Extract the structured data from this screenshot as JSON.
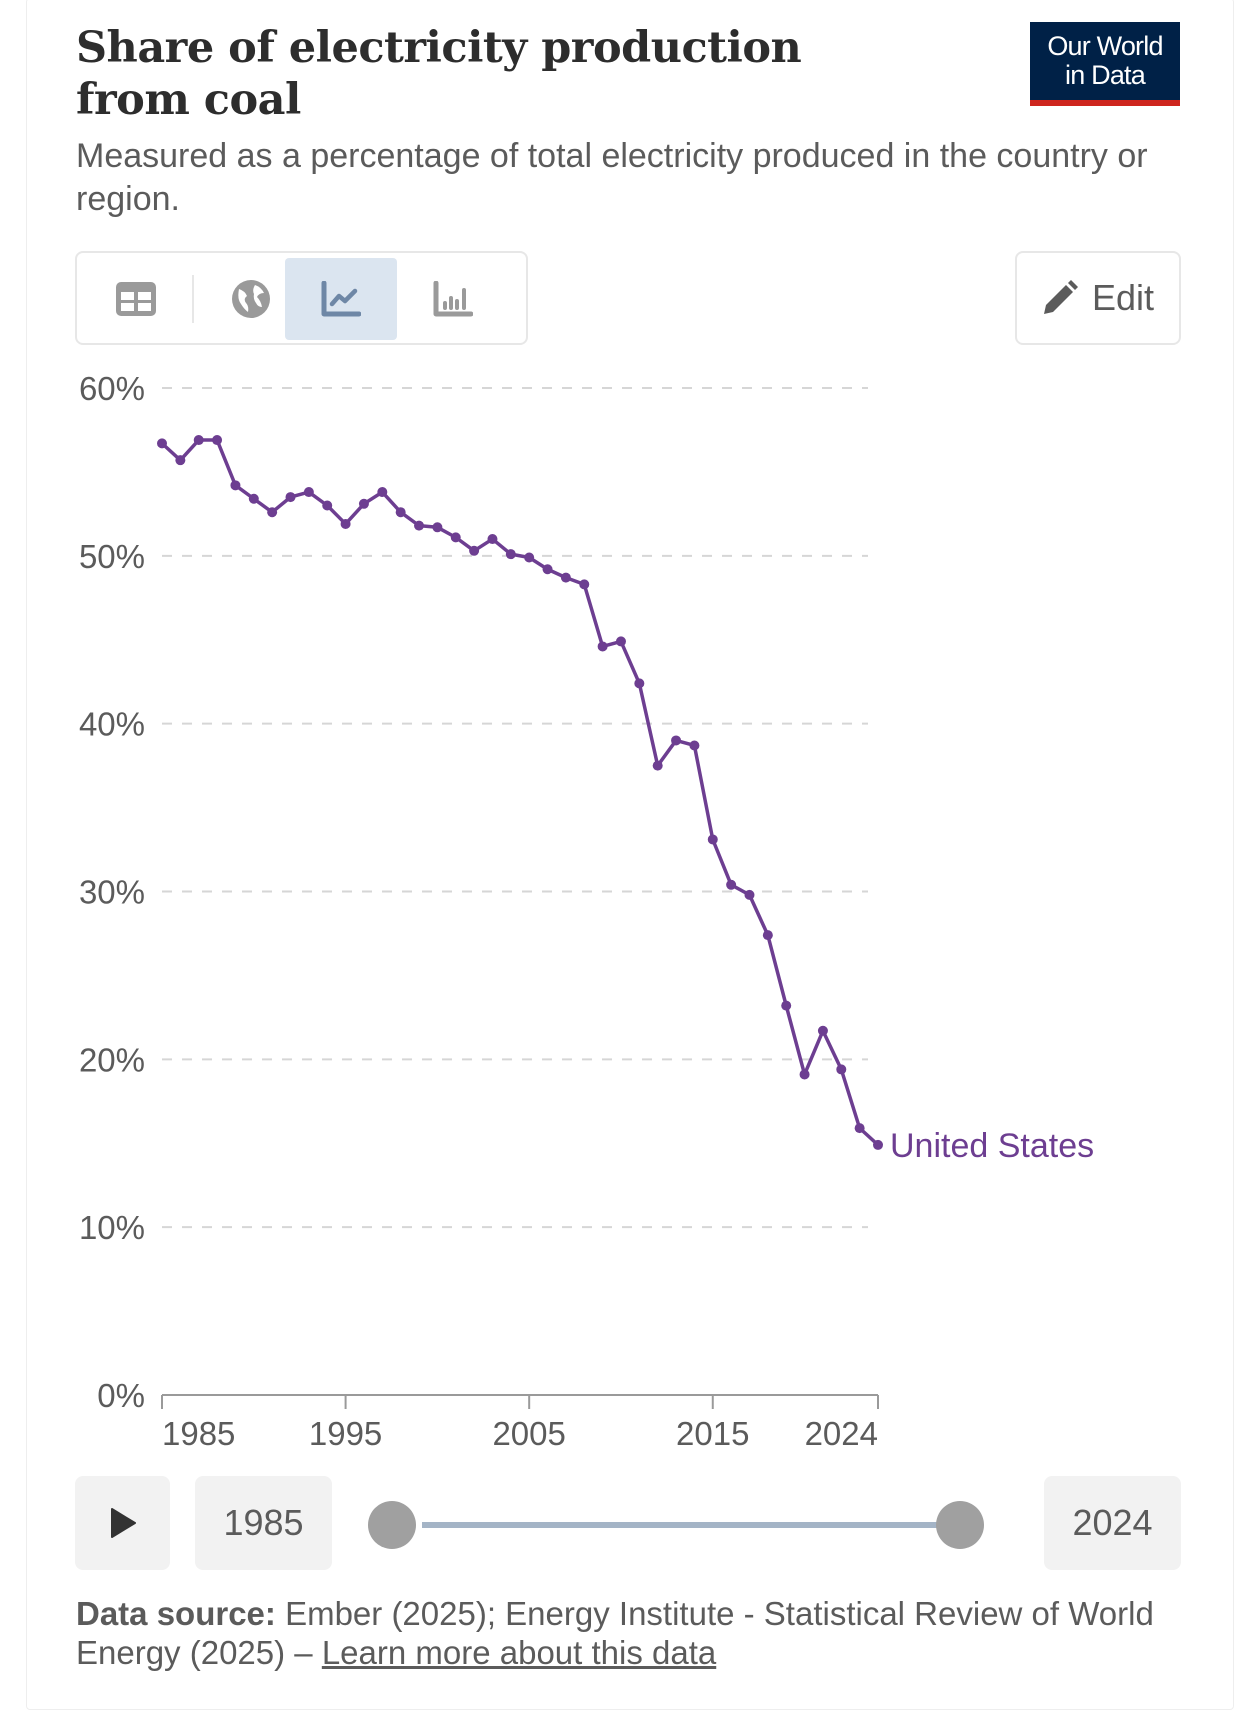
{
  "header": {
    "title": "Share of electricity production from coal",
    "subtitle": "Measured as a percentage of total electricity produced in the country or region.",
    "logo_line1": "Our World",
    "logo_line2": "in Data"
  },
  "toolbar": {
    "tabs": [
      {
        "icon": "table-icon",
        "active": false
      },
      {
        "icon": "globe-icon",
        "active": false
      },
      {
        "icon": "line-chart-icon",
        "active": true
      },
      {
        "icon": "bar-chart-icon",
        "active": false
      }
    ],
    "edit_label": "Edit"
  },
  "chart_data": {
    "type": "line",
    "title": "Share of electricity production from coal",
    "ylabel": "",
    "xlabel": "",
    "ylim": [
      0,
      60
    ],
    "xlim": [
      1985,
      2024
    ],
    "y_ticks": [
      "0%",
      "10%",
      "20%",
      "30%",
      "40%",
      "50%",
      "60%"
    ],
    "y_tick_values": [
      0,
      10,
      20,
      30,
      40,
      50,
      60
    ],
    "x_ticks": [
      "1985",
      "1995",
      "2005",
      "2015",
      "2024"
    ],
    "x_tick_values": [
      1985,
      1995,
      2005,
      2015,
      2024
    ],
    "grid": true,
    "series": [
      {
        "name": "United States",
        "color": "#6d3e91",
        "x": [
          1985,
          1986,
          1987,
          1988,
          1989,
          1990,
          1991,
          1992,
          1993,
          1994,
          1995,
          1996,
          1997,
          1998,
          1999,
          2000,
          2001,
          2002,
          2003,
          2004,
          2005,
          2006,
          2007,
          2008,
          2009,
          2010,
          2011,
          2012,
          2013,
          2014,
          2015,
          2016,
          2017,
          2018,
          2019,
          2020,
          2021,
          2022,
          2023,
          2024
        ],
        "values": [
          56.7,
          55.7,
          56.9,
          56.9,
          54.2,
          53.4,
          52.6,
          53.5,
          53.8,
          53.0,
          51.9,
          53.1,
          53.8,
          52.6,
          51.8,
          51.7,
          51.1,
          50.3,
          51.0,
          50.1,
          49.9,
          49.2,
          48.7,
          48.3,
          44.6,
          44.9,
          42.4,
          37.5,
          39.0,
          38.7,
          33.1,
          30.4,
          29.8,
          27.4,
          23.2,
          19.1,
          21.7,
          19.4,
          15.9,
          14.9
        ]
      }
    ]
  },
  "timeline": {
    "start_year": "1985",
    "end_year": "2024",
    "range_start_fraction": 0,
    "range_end_fraction": 1
  },
  "footer": {
    "source_label": "Data source:",
    "source_text": "Ember (2025); Energy Institute - Statistical Review of World Energy (2025) –",
    "learn_more": "Learn more about this data"
  }
}
